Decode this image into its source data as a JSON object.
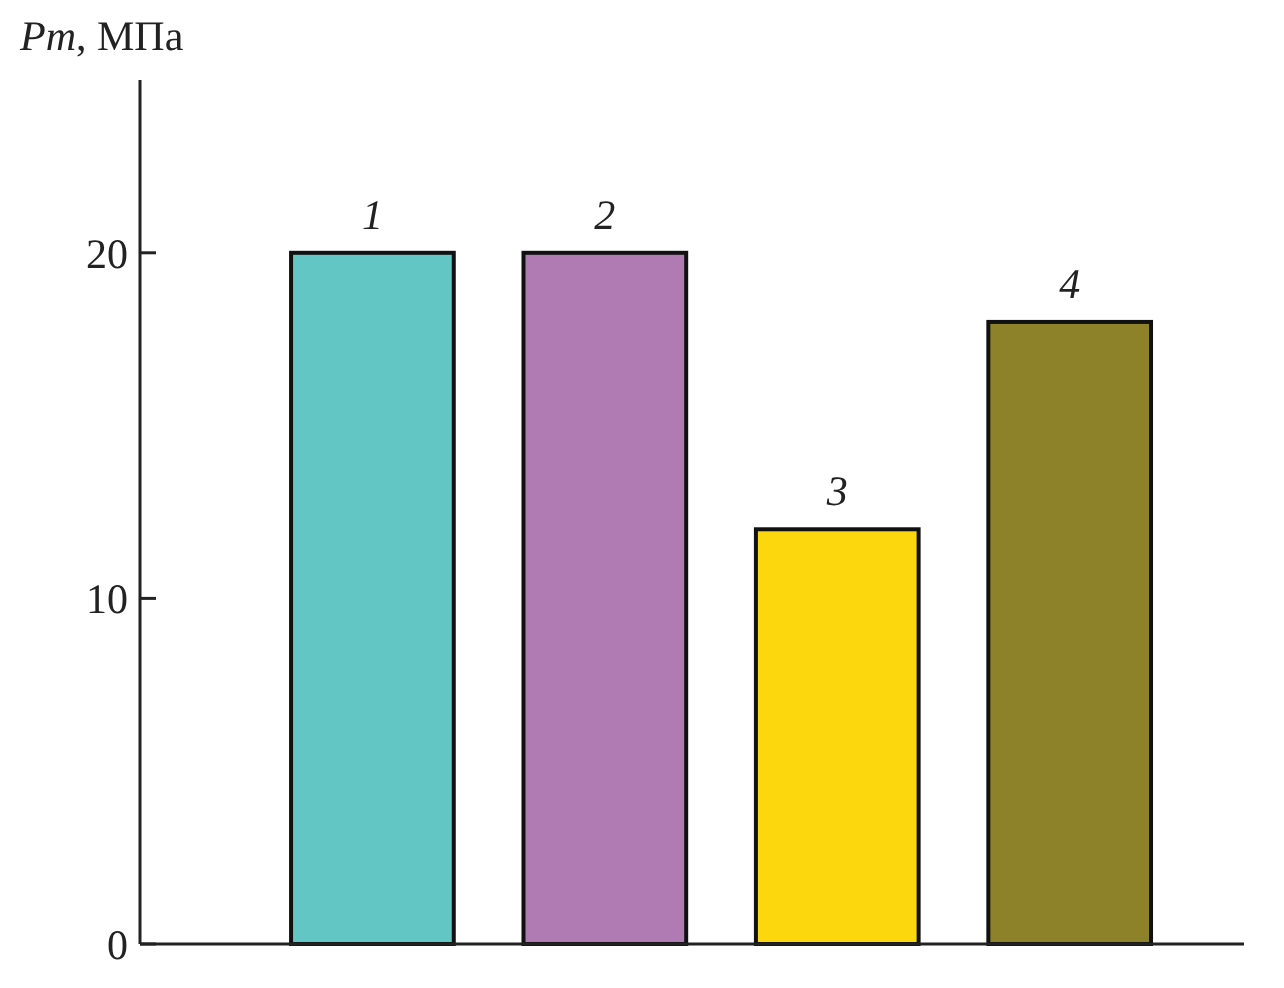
{
  "chart_data": {
    "type": "bar",
    "ylabel": "Pm, МПа",
    "categories": [
      "1",
      "2",
      "3",
      "4"
    ],
    "values": [
      20,
      20,
      12,
      18
    ],
    "colors": [
      "#62c6c4",
      "#b07bb3",
      "#fcd70e",
      "#8d8229"
    ],
    "ylim": [
      0,
      25
    ],
    "yticks": [
      0,
      10,
      20
    ],
    "grid": false
  }
}
